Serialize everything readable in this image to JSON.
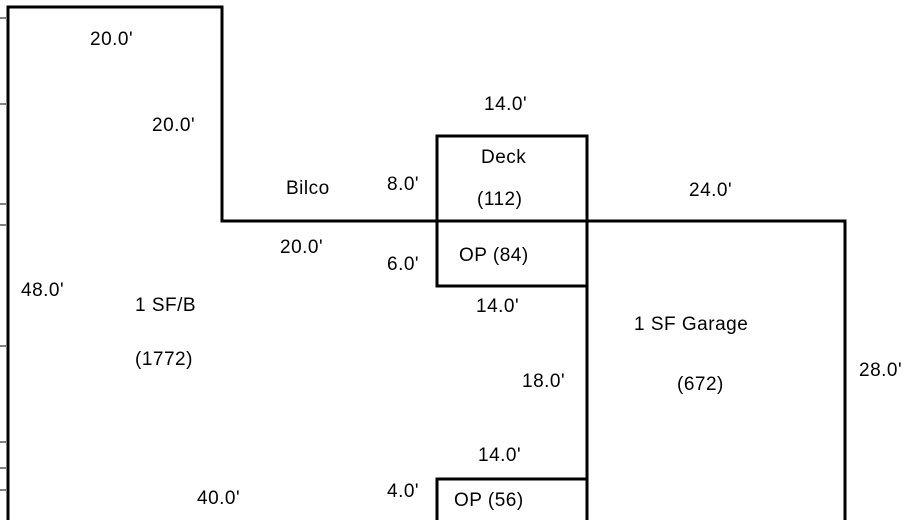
{
  "areas": {
    "house": {
      "name": "1 SF/B",
      "area": "(1772)"
    },
    "garage": {
      "name": "1 SF Garage",
      "area": "(672)"
    },
    "deck": {
      "name": "Deck",
      "area": "(112)"
    },
    "porch_upper": {
      "text": "OP  (84)"
    },
    "porch_lower": {
      "text": "OP  (56)"
    },
    "bilco": "Bilco"
  },
  "dimensions": {
    "house_top": "20.0'",
    "house_step_vertical": "20.0'",
    "house_step_horizontal": "20.0'",
    "house_left": "48.0'",
    "house_bottom": "40.0'",
    "deck_top": "14.0'",
    "deck_left": "8.0'",
    "porch_upper_left": "6.0'",
    "porch_upper_bottom": "14.0'",
    "house_right_lower": "18.0'",
    "porch_lower_top": "14.0'",
    "porch_lower_left": "4.0'",
    "garage_top": "24.0'",
    "garage_right": "28.0'"
  }
}
